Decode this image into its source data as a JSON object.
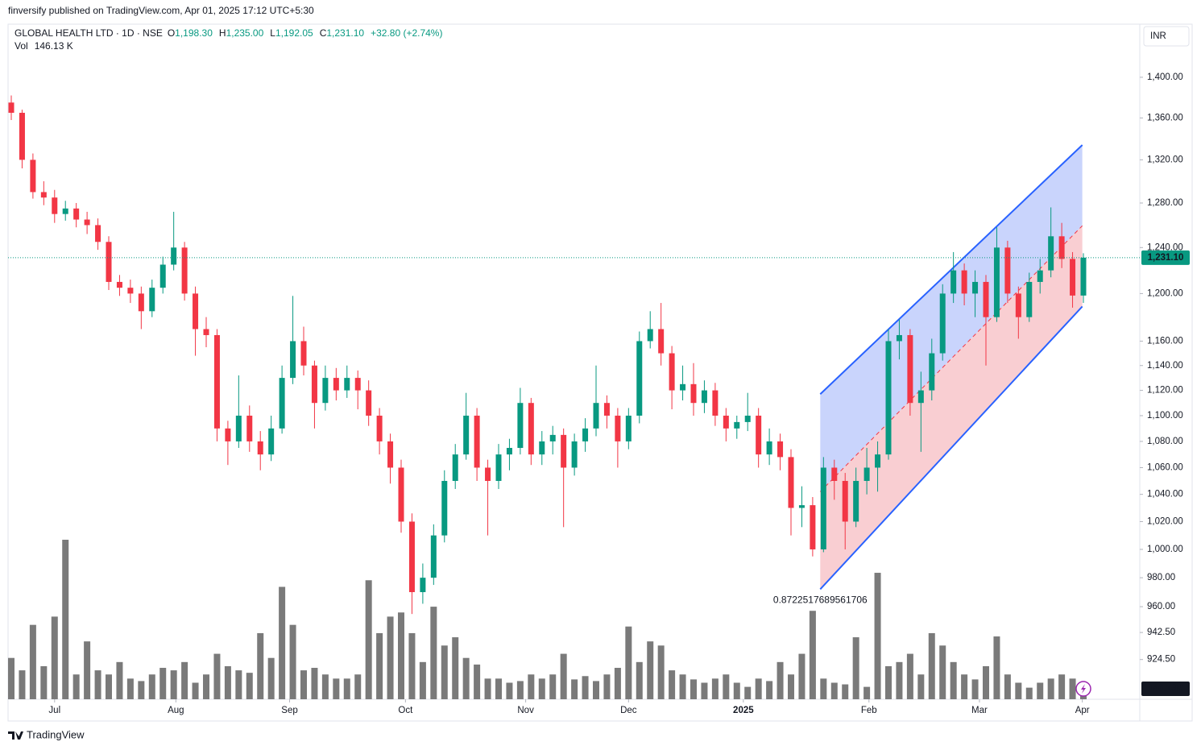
{
  "header": {
    "published": "finversify published on TradingView.com, Apr 01, 2025 17:12 UTC+5:30",
    "brand": "TradingView"
  },
  "chart_data": {
    "type": "candlestick",
    "legend": {
      "symbol": "GLOBAL HEALTH LTD · 1D · NSE",
      "items": [
        {
          "key": "O",
          "label": "1,198.30"
        },
        {
          "key": "H",
          "label": "1,235.00"
        },
        {
          "key": "L",
          "label": "1,192.05"
        },
        {
          "key": "C",
          "label": "1,231.10"
        }
      ],
      "change": "+32.80 (+2.74%)",
      "volume_key": "Vol",
      "volume_label": "146.13 K"
    },
    "currency": "INR",
    "log_scale": true,
    "grid": false,
    "up_color": "#089981",
    "down_color": "#f23645",
    "volume_color": "#7a7a7a",
    "ylim": [
      898.7,
      1454
    ],
    "yticks": [
      {
        "value": 1400,
        "label": "1,400.00"
      },
      {
        "value": 1360,
        "label": "1,360.00"
      },
      {
        "value": 1320,
        "label": "1,320.00"
      },
      {
        "value": 1280,
        "label": "1,280.00"
      },
      {
        "value": 1240,
        "label": "1,240.00"
      },
      {
        "value": 1200,
        "label": "1,200.00"
      },
      {
        "value": 1160,
        "label": "1,160.00"
      },
      {
        "value": 1140,
        "label": "1,140.00"
      },
      {
        "value": 1120,
        "label": "1,120.00"
      },
      {
        "value": 1100,
        "label": "1,100.00"
      },
      {
        "value": 1080,
        "label": "1,080.00"
      },
      {
        "value": 1060,
        "label": "1,060.00"
      },
      {
        "value": 1040,
        "label": "1,040.00"
      },
      {
        "value": 1020,
        "label": "1,020.00"
      },
      {
        "value": 1000,
        "label": "1,000.00"
      },
      {
        "value": 980,
        "label": "980.00"
      },
      {
        "value": 960,
        "label": "960.00"
      },
      {
        "value": 942.5,
        "label": "942.50"
      },
      {
        "value": 924.5,
        "label": "924.50"
      }
    ],
    "xticks": [
      {
        "value": 4.0,
        "label": "Jul"
      },
      {
        "value": 15.2,
        "label": "Aug"
      },
      {
        "value": 25.7,
        "label": "Sep"
      },
      {
        "value": 36.4,
        "label": "Oct"
      },
      {
        "value": 47.5,
        "label": "Nov"
      },
      {
        "value": 57.0,
        "label": "Dec"
      },
      {
        "value": 67.6,
        "label": "2025"
      },
      {
        "value": 79.2,
        "label": "Feb"
      },
      {
        "value": 89.4,
        "label": "Mar"
      },
      {
        "value": 98.9,
        "label": "Apr"
      }
    ],
    "ohlc": [
      [
        1375,
        1382,
        1358,
        1365
      ],
      [
        1365,
        1368,
        1312,
        1320
      ],
      [
        1320,
        1326,
        1284,
        1290
      ],
      [
        1290,
        1300,
        1278,
        1285
      ],
      [
        1285,
        1292,
        1262,
        1270
      ],
      [
        1270,
        1282,
        1264,
        1275
      ],
      [
        1275,
        1280,
        1258,
        1265
      ],
      [
        1265,
        1272,
        1252,
        1260
      ],
      [
        1260,
        1266,
        1238,
        1245
      ],
      [
        1245,
        1250,
        1203,
        1210
      ],
      [
        1210,
        1216,
        1198,
        1205
      ],
      [
        1205,
        1212,
        1192,
        1200
      ],
      [
        1200,
        1206,
        1170,
        1185
      ],
      [
        1185,
        1212,
        1180,
        1205
      ],
      [
        1205,
        1232,
        1200,
        1225
      ],
      [
        1225,
        1272,
        1220,
        1240
      ],
      [
        1240,
        1245,
        1194,
        1200
      ],
      [
        1200,
        1206,
        1148,
        1170
      ],
      [
        1170,
        1180,
        1155,
        1165
      ],
      [
        1165,
        1170,
        1080,
        1090
      ],
      [
        1090,
        1096,
        1062,
        1080
      ],
      [
        1080,
        1132,
        1075,
        1100
      ],
      [
        1100,
        1108,
        1072,
        1080
      ],
      [
        1080,
        1088,
        1058,
        1070
      ],
      [
        1070,
        1100,
        1065,
        1090
      ],
      [
        1090,
        1140,
        1086,
        1130
      ],
      [
        1130,
        1198,
        1125,
        1160
      ],
      [
        1160,
        1172,
        1132,
        1140
      ],
      [
        1140,
        1144,
        1090,
        1110
      ],
      [
        1110,
        1140,
        1104,
        1130
      ],
      [
        1130,
        1138,
        1112,
        1120
      ],
      [
        1120,
        1140,
        1114,
        1130
      ],
      [
        1130,
        1136,
        1105,
        1120
      ],
      [
        1120,
        1128,
        1092,
        1100
      ],
      [
        1100,
        1106,
        1070,
        1080
      ],
      [
        1080,
        1086,
        1048,
        1060
      ],
      [
        1060,
        1066,
        1012,
        1020
      ],
      [
        1020,
        1026,
        955,
        970
      ],
      [
        970,
        990,
        962,
        980
      ],
      [
        980,
        1018,
        975,
        1010
      ],
      [
        1010,
        1058,
        1005,
        1050
      ],
      [
        1050,
        1078,
        1044,
        1070
      ],
      [
        1070,
        1118,
        1066,
        1100
      ],
      [
        1100,
        1106,
        1050,
        1060
      ],
      [
        1060,
        1066,
        1010,
        1050
      ],
      [
        1050,
        1078,
        1044,
        1070
      ],
      [
        1070,
        1082,
        1058,
        1075
      ],
      [
        1075,
        1122,
        1070,
        1110
      ],
      [
        1110,
        1114,
        1062,
        1070
      ],
      [
        1070,
        1088,
        1062,
        1080
      ],
      [
        1080,
        1092,
        1070,
        1085
      ],
      [
        1085,
        1090,
        1016,
        1060
      ],
      [
        1060,
        1086,
        1054,
        1080
      ],
      [
        1080,
        1098,
        1072,
        1090
      ],
      [
        1090,
        1140,
        1084,
        1110
      ],
      [
        1110,
        1116,
        1090,
        1100
      ],
      [
        1100,
        1106,
        1060,
        1080
      ],
      [
        1080,
        1106,
        1074,
        1100
      ],
      [
        1100,
        1168,
        1094,
        1160
      ],
      [
        1160,
        1185,
        1154,
        1170
      ],
      [
        1170,
        1192,
        1140,
        1150
      ],
      [
        1150,
        1156,
        1105,
        1120
      ],
      [
        1120,
        1140,
        1112,
        1125
      ],
      [
        1125,
        1142,
        1100,
        1110
      ],
      [
        1110,
        1128,
        1102,
        1120
      ],
      [
        1120,
        1126,
        1092,
        1100
      ],
      [
        1100,
        1106,
        1080,
        1090
      ],
      [
        1090,
        1100,
        1082,
        1095
      ],
      [
        1095,
        1118,
        1088,
        1100
      ],
      [
        1100,
        1106,
        1060,
        1070
      ],
      [
        1070,
        1090,
        1062,
        1080
      ],
      [
        1080,
        1086,
        1058,
        1068
      ],
      [
        1068,
        1074,
        1010,
        1030
      ],
      [
        1030,
        1046,
        1016,
        1032
      ],
      [
        1032,
        1038,
        995,
        1000
      ],
      [
        1000,
        1068,
        998,
        1060
      ],
      [
        1060,
        1066,
        1036,
        1050
      ],
      [
        1050,
        1056,
        1000,
        1020
      ],
      [
        1020,
        1060,
        1016,
        1050
      ],
      [
        1050,
        1075,
        1040,
        1060
      ],
      [
        1060,
        1080,
        1042,
        1070
      ],
      [
        1070,
        1170,
        1066,
        1160
      ],
      [
        1160,
        1178,
        1145,
        1165
      ],
      [
        1165,
        1170,
        1100,
        1110
      ],
      [
        1110,
        1135,
        1072,
        1120
      ],
      [
        1120,
        1162,
        1112,
        1150
      ],
      [
        1150,
        1208,
        1144,
        1200
      ],
      [
        1200,
        1236,
        1192,
        1220
      ],
      [
        1220,
        1226,
        1190,
        1200
      ],
      [
        1200,
        1220,
        1180,
        1210
      ],
      [
        1210,
        1216,
        1140,
        1180
      ],
      [
        1180,
        1258,
        1176,
        1240
      ],
      [
        1240,
        1246,
        1192,
        1200
      ],
      [
        1200,
        1206,
        1162,
        1180
      ],
      [
        1180,
        1218,
        1176,
        1210
      ],
      [
        1210,
        1230,
        1200,
        1220
      ],
      [
        1220,
        1276,
        1214,
        1250
      ],
      [
        1250,
        1262,
        1222,
        1230
      ],
      [
        1230,
        1236,
        1188,
        1198.3
      ],
      [
        1198.3,
        1235,
        1192.05,
        1231.1
      ]
    ],
    "volume": [
      500,
      350,
      900,
      400,
      1000,
      1930,
      300,
      700,
      350,
      300,
      450,
      250,
      220,
      300,
      380,
      350,
      450,
      200,
      300,
      550,
      400,
      350,
      320,
      800,
      500,
      1360,
      900,
      350,
      380,
      300,
      250,
      250,
      300,
      1440,
      800,
      1000,
      1050,
      800,
      450,
      1120,
      650,
      750,
      500,
      420,
      250,
      250,
      200,
      220,
      300,
      250,
      300,
      550,
      240,
      280,
      220,
      300,
      380,
      880,
      450,
      700,
      650,
      350,
      300,
      240,
      200,
      250,
      300,
      200,
      150,
      250,
      220,
      450,
      300,
      550,
      1070,
      250,
      200,
      180,
      750,
      150,
      1530,
      400,
      450,
      550,
      300,
      800,
      650,
      450,
      300,
      240,
      400,
      760,
      300,
      200,
      140,
      200,
      250,
      300,
      250,
      146.13
    ],
    "last_price_label": "1,231.10",
    "last_volume_label": "146.13K",
    "channel": {
      "x": [
        74.7,
        98.9
      ],
      "upper": [
        1117,
        1334
      ],
      "lower": [
        972,
        1189
      ],
      "label": "0.8722517689561706",
      "upper_fill": "#bfcdfb",
      "lower_fill": "#f8c5ca",
      "line_color": "#2962ff"
    }
  }
}
